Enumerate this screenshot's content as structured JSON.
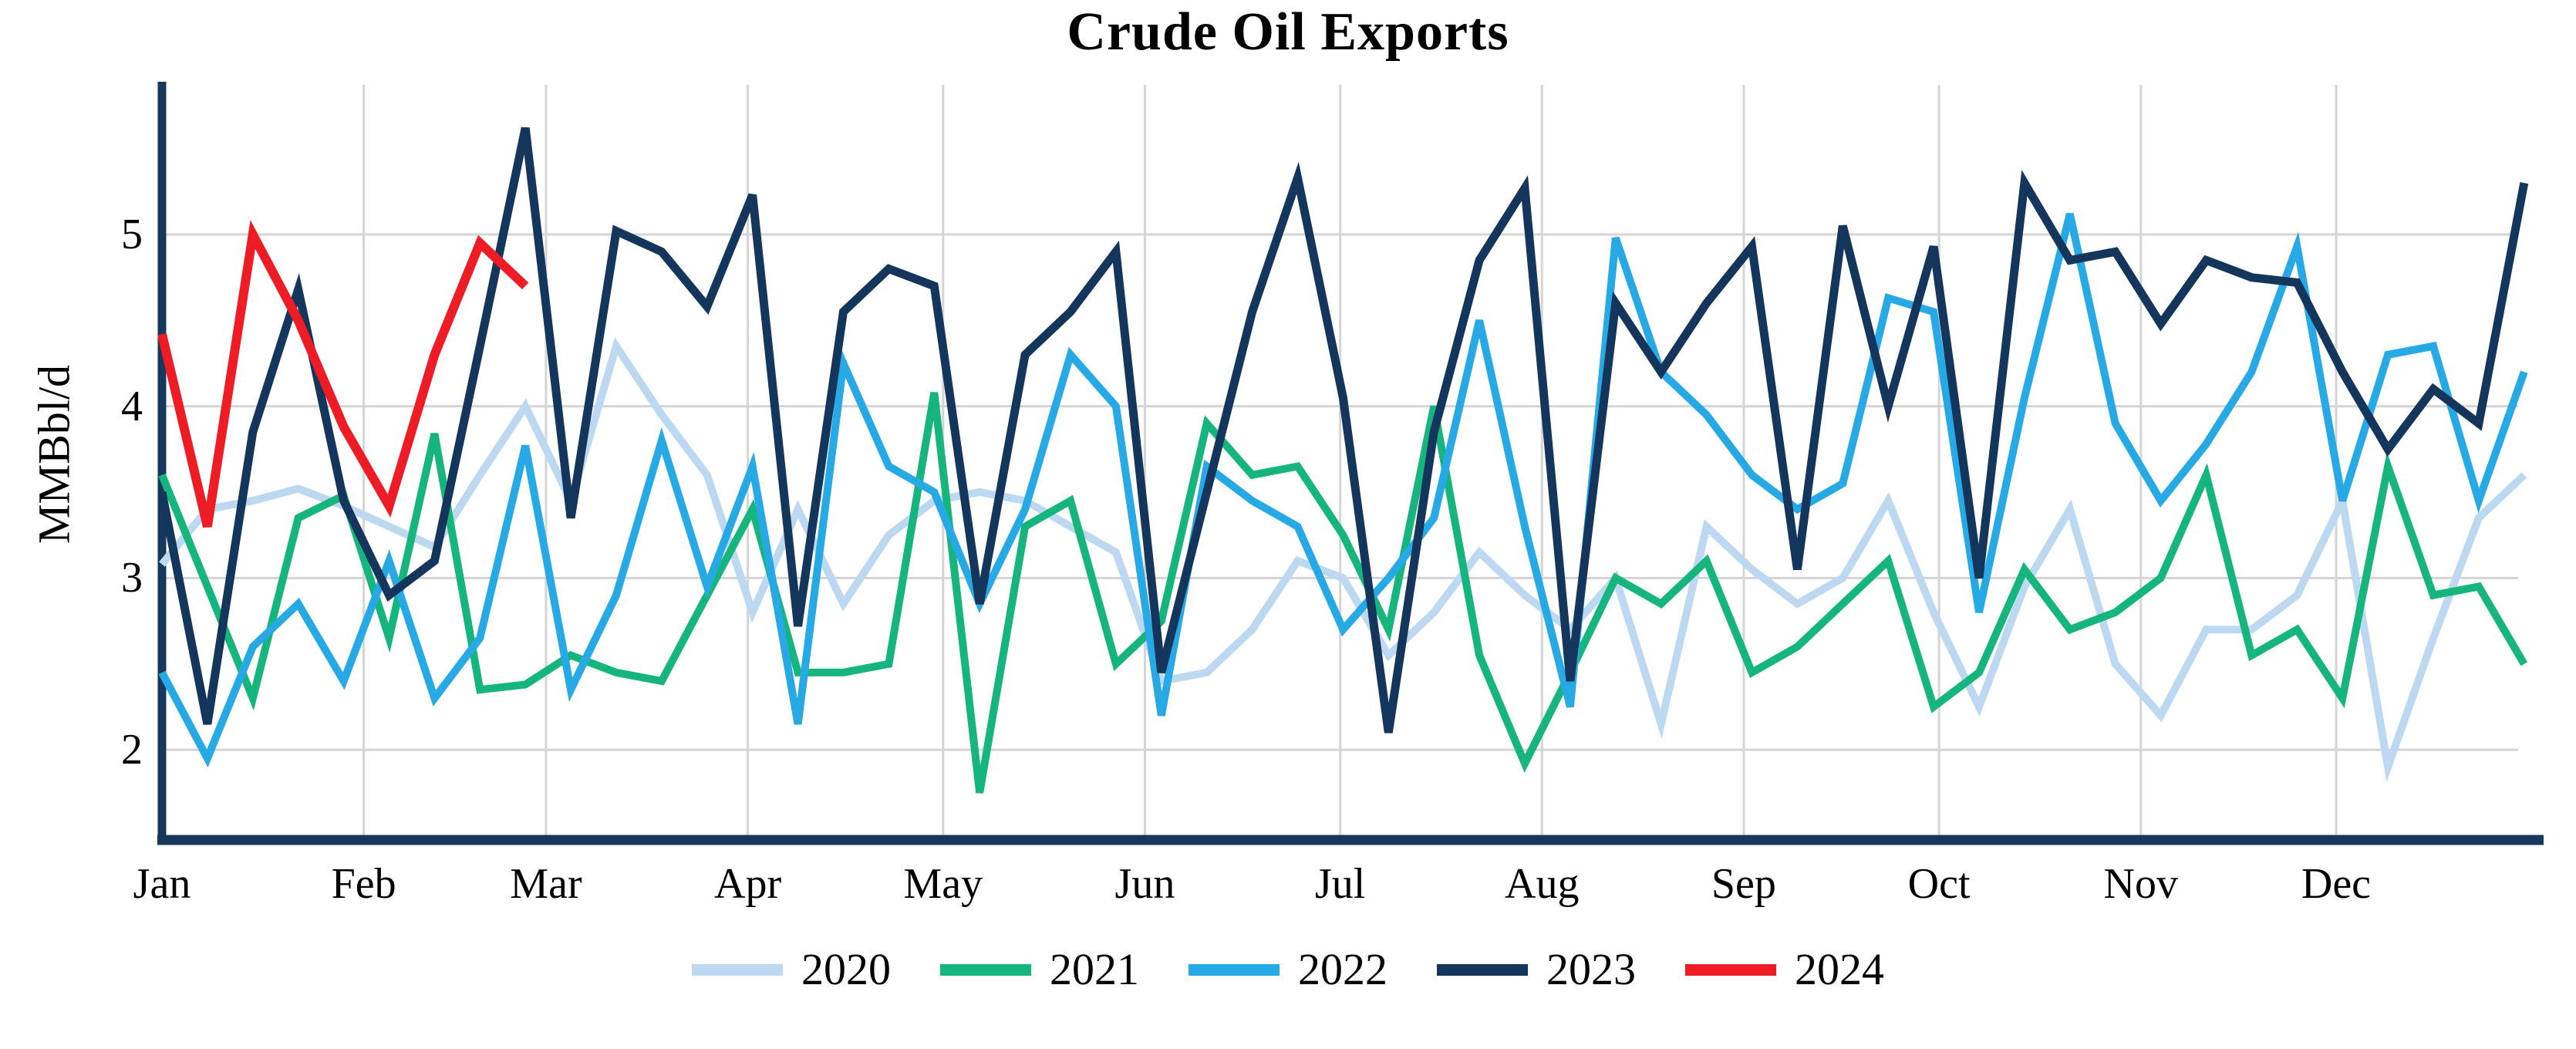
{
  "title": "Crude Oil Exports",
  "y_axis": {
    "label": "MMBbl/d",
    "ticks": [
      "5",
      "4",
      "3",
      "2"
    ],
    "tick_values": [
      5,
      4,
      3,
      2
    ]
  },
  "x_axis": {
    "months": [
      "Jan",
      "Feb",
      "Mar",
      "Apr",
      "May",
      "Jun",
      "Jul",
      "Aug",
      "Sep",
      "Oct",
      "Nov",
      "Dec"
    ],
    "month_start_days": [
      0,
      31,
      59,
      90,
      120,
      151,
      181,
      212,
      243,
      273,
      304,
      334
    ]
  },
  "legend": [
    {
      "label": "2020",
      "color": "#BDD8F1"
    },
    {
      "label": "2021",
      "color": "#17B57E"
    },
    {
      "label": "2022",
      "color": "#27A9E5"
    },
    {
      "label": "2023",
      "color": "#15365C"
    },
    {
      "label": "2024",
      "color": "#EE1C25"
    }
  ],
  "colors": {
    "axis": "#17375C",
    "gridline": "#D4D4D4",
    "background": "#FFFFFF"
  },
  "chart_data": {
    "type": "line",
    "title": "Crude Oil Exports",
    "xlabel": "",
    "ylabel": "MMBbl/d",
    "x_unit": "weekly observations, index 0 = first week of January",
    "ylim": [
      1.5,
      5.87
    ],
    "yticks": [
      2,
      3,
      4,
      5
    ],
    "grid": true,
    "legend_position": "bottom",
    "month_ticks": [
      "Jan",
      "Feb",
      "Mar",
      "Apr",
      "May",
      "Jun",
      "Jul",
      "Aug",
      "Sep",
      "Oct",
      "Nov",
      "Dec"
    ],
    "series": [
      {
        "name": "2020",
        "color": "#BDD8F1",
        "width": 10,
        "values": [
          3.08,
          3.4,
          3.45,
          3.52,
          3.42,
          3.3,
          3.18,
          3.6,
          4.0,
          3.45,
          4.35,
          3.95,
          3.6,
          2.8,
          3.4,
          2.85,
          3.25,
          3.45,
          3.5,
          3.45,
          3.3,
          3.15,
          2.4,
          2.45,
          2.7,
          3.1,
          3.0,
          2.55,
          2.8,
          3.15,
          2.9,
          2.7,
          3.0,
          2.15,
          3.3,
          3.05,
          2.85,
          3.0,
          3.45,
          2.8,
          2.25,
          2.95,
          3.4,
          2.5,
          2.2,
          2.7,
          2.7,
          2.9,
          3.45,
          1.9,
          2.65,
          3.35,
          3.6
        ]
      },
      {
        "name": "2021",
        "color": "#17B57E",
        "width": 10,
        "values": [
          3.6,
          2.95,
          2.3,
          3.35,
          3.48,
          2.65,
          3.84,
          2.35,
          2.38,
          2.55,
          2.45,
          2.4,
          2.9,
          3.4,
          2.45,
          2.45,
          2.5,
          4.08,
          1.75,
          3.3,
          3.45,
          2.5,
          2.75,
          3.9,
          3.6,
          3.65,
          3.25,
          2.7,
          4.0,
          2.55,
          1.92,
          2.45,
          3.0,
          2.85,
          3.1,
          2.45,
          2.6,
          2.85,
          3.1,
          2.25,
          2.45,
          3.05,
          2.7,
          2.8,
          3.0,
          3.6,
          2.55,
          2.7,
          2.3,
          3.65,
          2.9,
          2.95,
          2.5
        ]
      },
      {
        "name": "2022",
        "color": "#27A9E5",
        "width": 10,
        "values": [
          2.45,
          1.95,
          2.6,
          2.85,
          2.4,
          3.1,
          2.3,
          2.65,
          3.77,
          2.35,
          2.9,
          3.8,
          2.95,
          3.65,
          2.15,
          4.25,
          3.65,
          3.5,
          2.85,
          3.4,
          4.3,
          4.0,
          2.2,
          3.65,
          3.45,
          3.3,
          2.7,
          3.0,
          3.35,
          4.5,
          3.3,
          2.25,
          4.98,
          4.2,
          3.95,
          3.6,
          3.4,
          3.55,
          4.63,
          4.55,
          2.8,
          4.05,
          5.12,
          3.9,
          3.45,
          3.78,
          4.2,
          4.93,
          3.45,
          4.3,
          4.35,
          3.45,
          4.2
        ]
      },
      {
        "name": "2023",
        "color": "#15365C",
        "width": 11,
        "values": [
          3.5,
          2.15,
          3.85,
          4.68,
          3.45,
          2.9,
          3.1,
          4.35,
          5.62,
          3.35,
          5.02,
          4.9,
          4.58,
          5.23,
          2.72,
          4.55,
          4.8,
          4.7,
          2.85,
          4.3,
          4.55,
          4.9,
          2.45,
          3.5,
          4.55,
          5.33,
          4.05,
          2.1,
          3.85,
          4.85,
          5.27,
          2.4,
          4.6,
          4.2,
          4.6,
          4.93,
          3.05,
          5.05,
          4.0,
          4.93,
          3.0,
          5.3,
          4.85,
          4.9,
          4.48,
          4.85,
          4.75,
          4.72,
          4.2,
          3.75,
          4.1,
          3.9,
          5.3
        ]
      },
      {
        "name": "2024",
        "color": "#EE1C25",
        "width": 12,
        "values": [
          4.42,
          3.3,
          5.0,
          4.5,
          3.88,
          3.42,
          4.3,
          4.95,
          4.7
        ]
      }
    ]
  }
}
